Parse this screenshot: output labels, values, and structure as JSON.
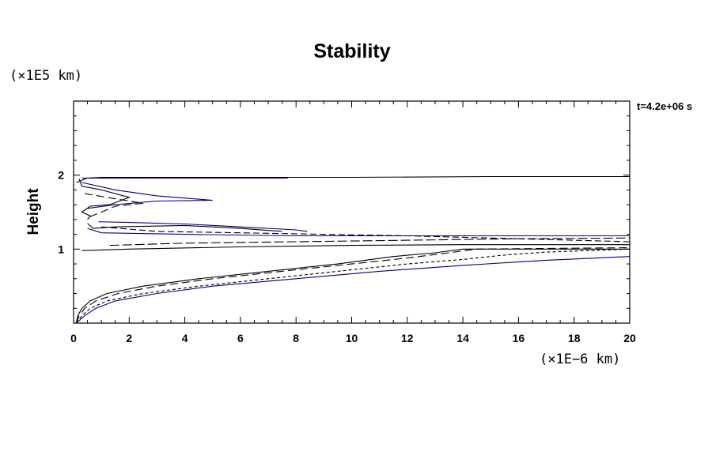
{
  "chart_data": {
    "type": "line",
    "title": "Stability",
    "xlabel": "",
    "ylabel": "Height",
    "x_unit": "(×1E−6 km)",
    "y_unit": "(×1E5 km)",
    "annotation": "t=4.2e+06 s",
    "xlim": [
      0,
      20
    ],
    "ylim": [
      0,
      3
    ],
    "x_ticks": [
      0,
      2,
      4,
      6,
      8,
      10,
      12,
      14,
      16,
      18,
      20
    ],
    "y_ticks": [
      1,
      2
    ],
    "grid": false,
    "legend": "none",
    "series": [
      {
        "color": "#000000",
        "dash": "",
        "points": [
          [
            0.1,
            0
          ],
          [
            0.15,
            0.1
          ],
          [
            0.3,
            0.2
          ],
          [
            0.6,
            0.3
          ],
          [
            1.2,
            0.4
          ],
          [
            2.5,
            0.5
          ],
          [
            4.5,
            0.6
          ],
          [
            7,
            0.7
          ],
          [
            9.5,
            0.8
          ],
          [
            11.5,
            0.9
          ],
          [
            13,
            0.95
          ],
          [
            14,
            1.0
          ],
          [
            20,
            1.0
          ]
        ]
      },
      {
        "color": "#000000",
        "dash": "10,5",
        "points": [
          [
            0.1,
            0
          ],
          [
            0.2,
            0.1
          ],
          [
            0.4,
            0.2
          ],
          [
            0.8,
            0.3
          ],
          [
            1.6,
            0.4
          ],
          [
            3,
            0.5
          ],
          [
            5,
            0.6
          ],
          [
            7.5,
            0.7
          ],
          [
            10,
            0.8
          ],
          [
            12,
            0.88
          ],
          [
            13.5,
            0.95
          ],
          [
            14.5,
            1.0
          ],
          [
            20,
            1.02
          ]
        ]
      },
      {
        "color": "#000000",
        "dash": "4,3",
        "points": [
          [
            0.1,
            0
          ],
          [
            0.3,
            0.1
          ],
          [
            0.6,
            0.2
          ],
          [
            1.2,
            0.3
          ],
          [
            2.5,
            0.4
          ],
          [
            4.5,
            0.5
          ],
          [
            7,
            0.6
          ],
          [
            9.5,
            0.7
          ],
          [
            12,
            0.8
          ],
          [
            14,
            0.86
          ],
          [
            15.5,
            0.92
          ],
          [
            17,
            0.96
          ],
          [
            20,
            1.0
          ]
        ]
      },
      {
        "color": "#000080",
        "dash": "",
        "points": [
          [
            0.1,
            0
          ],
          [
            0.4,
            0.1
          ],
          [
            0.8,
            0.2
          ],
          [
            1.5,
            0.3
          ],
          [
            3,
            0.4
          ],
          [
            5,
            0.5
          ],
          [
            8,
            0.6
          ],
          [
            11,
            0.7
          ],
          [
            14,
            0.78
          ],
          [
            17,
            0.85
          ],
          [
            20,
            0.9
          ]
        ]
      },
      {
        "color": "#000000",
        "dash": "",
        "points": [
          [
            0.3,
            0.98
          ],
          [
            2,
            1.0
          ],
          [
            6,
            1.03
          ],
          [
            10,
            1.05
          ],
          [
            14,
            1.06
          ],
          [
            20,
            1.06
          ]
        ]
      },
      {
        "color": "#000000",
        "dash": "12,4",
        "points": [
          [
            1.3,
            1.05
          ],
          [
            4,
            1.08
          ],
          [
            8,
            1.1
          ],
          [
            12,
            1.12
          ],
          [
            16,
            1.14
          ],
          [
            20,
            1.15
          ]
        ]
      },
      {
        "color": "#000080",
        "dash": "",
        "points": [
          [
            0.5,
            1.28
          ],
          [
            1,
            1.22
          ],
          [
            4,
            1.2
          ],
          [
            8,
            1.18
          ],
          [
            12,
            1.18
          ],
          [
            16,
            1.18
          ],
          [
            20,
            1.18
          ]
        ]
      },
      {
        "color": "#000000",
        "dash": "8,4",
        "points": [
          [
            1,
            1.3
          ],
          [
            3,
            1.24
          ],
          [
            6,
            1.22
          ],
          [
            9,
            1.2
          ],
          [
            12,
            1.18
          ],
          [
            15,
            1.15
          ],
          [
            18,
            1.12
          ],
          [
            20,
            1.1
          ]
        ]
      },
      {
        "color": "#000000",
        "dash": "",
        "points": [
          [
            0.5,
            1.35
          ],
          [
            0.7,
            1.28
          ],
          [
            1.5,
            1.3
          ],
          [
            4,
            1.32
          ],
          [
            6,
            1.28
          ],
          [
            7.5,
            1.24
          ]
        ]
      },
      {
        "color": "#000080",
        "dash": "",
        "points": [
          [
            0.9,
            1.37
          ],
          [
            2,
            1.36
          ],
          [
            4,
            1.34
          ],
          [
            6,
            1.3
          ],
          [
            8,
            1.26
          ],
          [
            8.4,
            1.24
          ]
        ]
      },
      {
        "color": "#000000",
        "dash": "",
        "points": [
          [
            0.2,
            1.95
          ],
          [
            0.3,
            1.85
          ],
          [
            1,
            1.8
          ],
          [
            2,
            1.7
          ],
          [
            1.3,
            1.6
          ],
          [
            0.6,
            1.58
          ],
          [
            0.3,
            1.5
          ],
          [
            0.6,
            1.45
          ],
          [
            0.5,
            1.4
          ]
        ]
      },
      {
        "color": "#000000",
        "dash": "10,5",
        "points": [
          [
            0.4,
            1.75
          ],
          [
            1.5,
            1.68
          ],
          [
            2.5,
            1.62
          ],
          [
            1.5,
            1.58
          ],
          [
            1,
            1.5
          ],
          [
            0.6,
            1.44
          ]
        ]
      },
      {
        "color": "#000080",
        "dash": "",
        "points": [
          [
            0.3,
            1.9
          ],
          [
            1.5,
            1.8
          ],
          [
            3,
            1.72
          ],
          [
            5,
            1.66
          ],
          [
            3,
            1.65
          ],
          [
            1.5,
            1.6
          ],
          [
            0.5,
            1.55
          ]
        ]
      },
      {
        "color": "#000000",
        "dash": "",
        "points": [
          [
            0.1,
            1.9
          ],
          [
            0.5,
            1.96
          ],
          [
            1,
            1.97
          ],
          [
            5,
            1.97
          ],
          [
            10,
            1.97
          ],
          [
            15,
            1.98
          ],
          [
            20,
            1.98
          ]
        ]
      },
      {
        "color": "#000080",
        "dash": "",
        "points": [
          [
            0.3,
            1.96
          ],
          [
            2,
            1.96
          ],
          [
            5,
            1.96
          ],
          [
            7.7,
            1.96
          ]
        ]
      }
    ]
  }
}
